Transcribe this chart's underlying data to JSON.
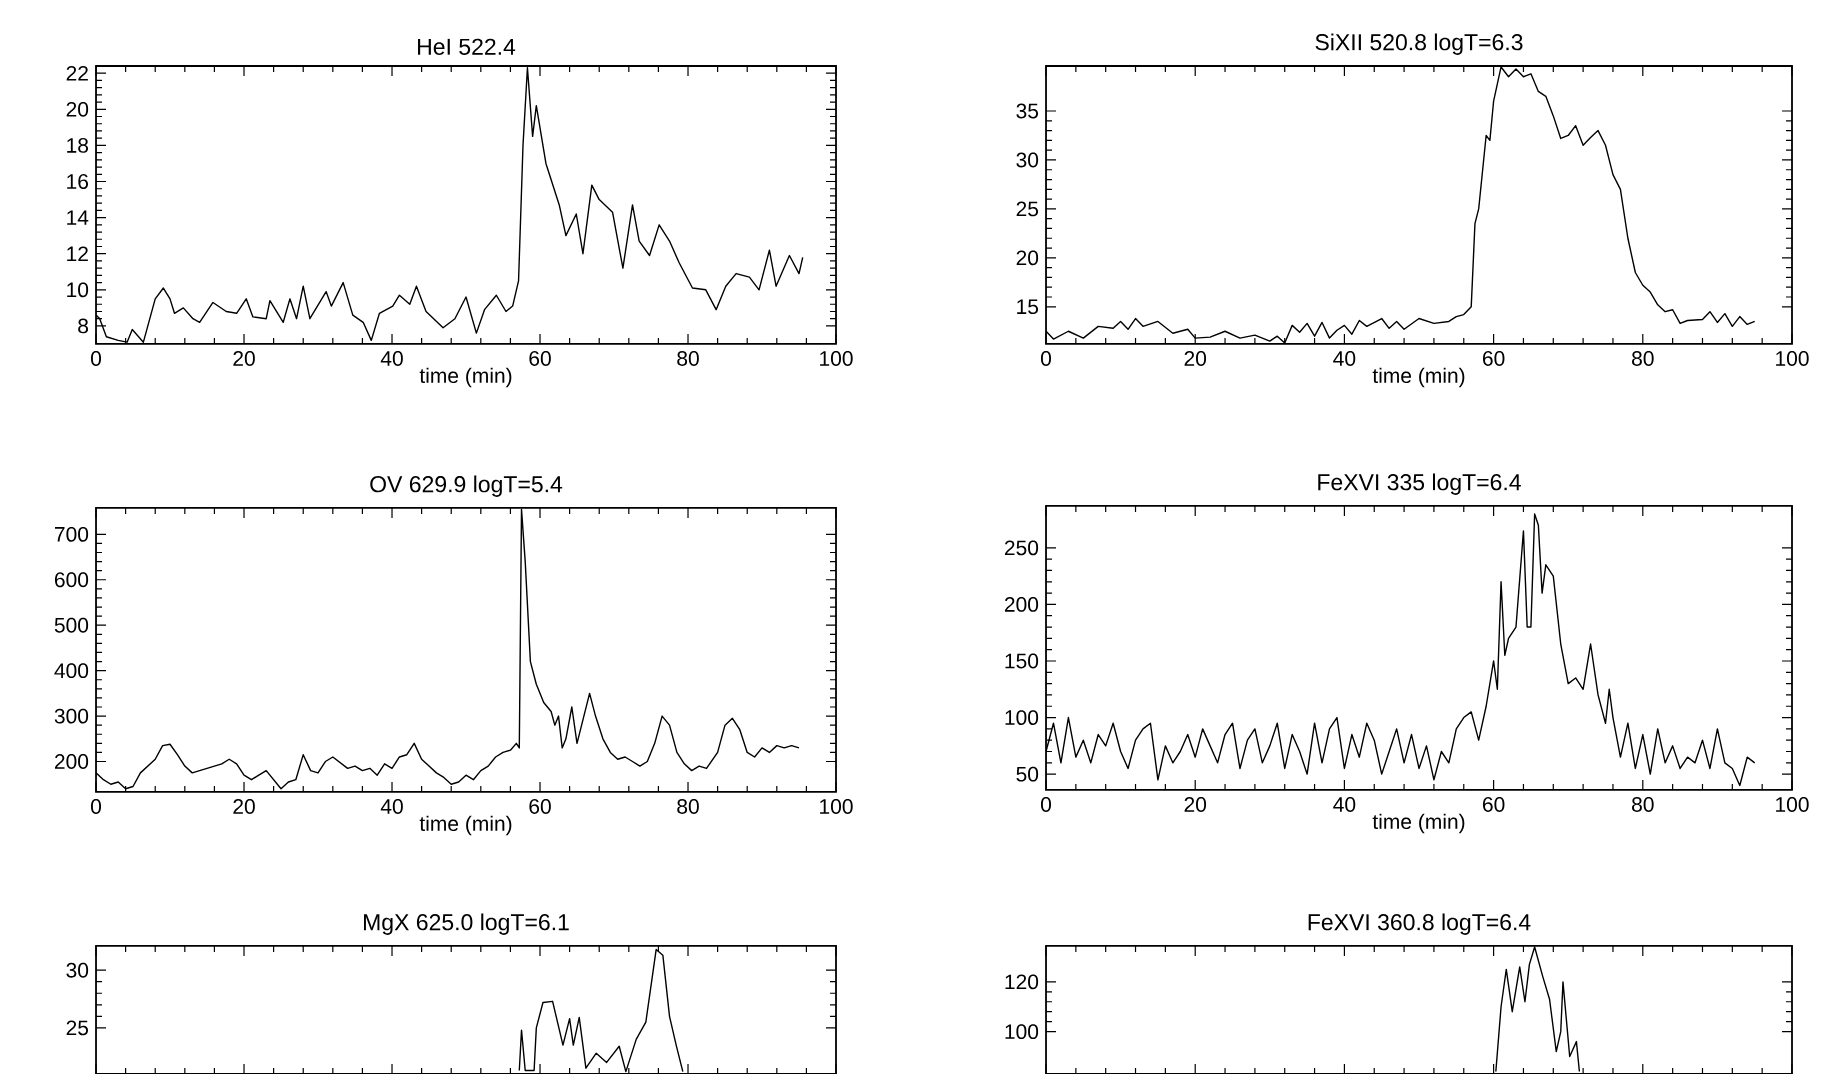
{
  "chart_data": [
    {
      "type": "line",
      "title": "HeI 522.4",
      "xlabel": "time (min)",
      "color": "#000000",
      "xlim": [
        0,
        100
      ],
      "ylim": [
        7,
        22.4
      ],
      "xticks": [
        0,
        20,
        40,
        60,
        80,
        100
      ],
      "yticks": [
        8,
        10,
        12,
        14,
        16,
        18,
        20,
        22
      ],
      "x": [
        0,
        0.5,
        1.4,
        3,
        4.2,
        4.9,
        6.4,
        8,
        9.1,
        10,
        10.6,
        11.8,
        13.1,
        14,
        15.8,
        17.6,
        19,
        20.3,
        21.2,
        23,
        23.5,
        25.3,
        26.2,
        27.1,
        28,
        28.9,
        31.1,
        31.8,
        33.4,
        34.7,
        36.1,
        37.2,
        38.3,
        40.1,
        41,
        42.4,
        43.3,
        44.6,
        46.9,
        48.5,
        50,
        51.4,
        52.5,
        54.1,
        55.4,
        56.3,
        57.1,
        57.7,
        58.3,
        59,
        59.5,
        60.8,
        62.6,
        63.5,
        64.9,
        65.8,
        67,
        68,
        69.8,
        71.2,
        72.5,
        73.4,
        74.8,
        76.1,
        77.5,
        78.8,
        80.6,
        82.4,
        83.8,
        85.1,
        86.5,
        88.3,
        89.6,
        91,
        91.9,
        93.7,
        95,
        95.5
      ],
      "values": [
        8.6,
        8.4,
        7.4,
        7.2,
        7.1,
        7.8,
        7.1,
        9.5,
        10.1,
        9.5,
        8.7,
        9.0,
        8.4,
        8.2,
        9.3,
        8.8,
        8.7,
        9.5,
        8.5,
        8.4,
        9.4,
        8.2,
        9.5,
        8.4,
        10.2,
        8.4,
        9.9,
        9.1,
        10.4,
        8.6,
        8.2,
        7.2,
        8.7,
        9.1,
        9.7,
        9.2,
        10.2,
        8.8,
        7.9,
        8.4,
        9.6,
        7.6,
        8.9,
        9.7,
        8.8,
        9.1,
        10.5,
        18,
        22.3,
        18.5,
        20.2,
        17,
        14.7,
        13,
        14.2,
        12,
        15.8,
        15,
        14.3,
        11.2,
        14.7,
        12.7,
        11.9,
        13.6,
        12.7,
        11.5,
        10.1,
        10.0,
        8.9,
        10.2,
        10.9,
        10.7,
        10.0,
        12.2,
        10.2,
        11.9,
        10.9,
        11.8
      ]
    },
    {
      "type": "line",
      "title": "SiXII 520.8 logT=6.3",
      "xlabel": "time (min)",
      "color": "#000000",
      "xlim": [
        0,
        100
      ],
      "ylim": [
        11.2,
        39.6
      ],
      "xticks": [
        0,
        20,
        40,
        60,
        80,
        100
      ],
      "yticks": [
        15,
        20,
        25,
        30,
        35
      ],
      "x": [
        0,
        1,
        3,
        5,
        7,
        9,
        10,
        11,
        12,
        13,
        15,
        17,
        19,
        20,
        22,
        24,
        26,
        28,
        30,
        31,
        32,
        33,
        34,
        35,
        36,
        37,
        38,
        39,
        40,
        41,
        42,
        43,
        45,
        46,
        47,
        48,
        50,
        52,
        54,
        55,
        56,
        57,
        57.5,
        58,
        59,
        59.5,
        60,
        61,
        62,
        63,
        64,
        65,
        66,
        67,
        68,
        69,
        70,
        71,
        72,
        73,
        74,
        75,
        76,
        77,
        78,
        79,
        80,
        81,
        82,
        83,
        84,
        85,
        86,
        88,
        89,
        90,
        91,
        92,
        93,
        94,
        95
      ],
      "values": [
        12.5,
        11.7,
        12.5,
        11.8,
        13,
        12.8,
        13.5,
        12.7,
        13.8,
        13.0,
        13.5,
        12.3,
        12.7,
        11.8,
        11.9,
        12.5,
        11.8,
        12.1,
        11.5,
        12,
        11.3,
        13.1,
        12.4,
        13.3,
        12.0,
        13.4,
        11.8,
        12.6,
        13.1,
        12.2,
        13.6,
        13.0,
        13.8,
        12.8,
        13.5,
        12.7,
        13.8,
        13.3,
        13.5,
        14.0,
        14.2,
        15.0,
        23.5,
        25,
        32.5,
        32,
        36,
        39.5,
        38.5,
        39.3,
        38.5,
        38.8,
        37,
        36.5,
        34.5,
        32.2,
        32.5,
        33.5,
        31.5,
        32.3,
        33.0,
        31.5,
        28.5,
        27,
        22,
        18.5,
        17.2,
        16.5,
        15.2,
        14.5,
        14.7,
        13.3,
        13.6,
        13.7,
        14.5,
        13.4,
        14.3,
        13.0,
        14.0,
        13.2,
        13.5
      ]
    },
    {
      "type": "line",
      "title": "OV 629.9 logT=5.4",
      "xlabel": "time (min)",
      "color": "#000000",
      "xlim": [
        0,
        100
      ],
      "ylim": [
        133,
        758
      ],
      "xticks": [
        0,
        20,
        40,
        60,
        80,
        100
      ],
      "yticks": [
        200,
        300,
        400,
        500,
        600,
        700
      ],
      "x": [
        0,
        1,
        2,
        3,
        4,
        5,
        6,
        8,
        9,
        10,
        11,
        12,
        13,
        15,
        17,
        18,
        19,
        20,
        21,
        22,
        23,
        25,
        26,
        27,
        28,
        29,
        30,
        31,
        32,
        34,
        35,
        36,
        37,
        38,
        39,
        40,
        41,
        42,
        43,
        44,
        45,
        46,
        47,
        48,
        49,
        50,
        51,
        52,
        53,
        54,
        55,
        56,
        56.8,
        57.2,
        57.5,
        58,
        58.7,
        59.5,
        60.5,
        61.5,
        62,
        62.5,
        63,
        63.5,
        64.3,
        65,
        66.7,
        67.5,
        68.5,
        69.5,
        70.5,
        71.5,
        72.5,
        73.5,
        74.5,
        75.5,
        76.5,
        77.5,
        78.5,
        79.5,
        80.5,
        81.5,
        82.5,
        84,
        85,
        86,
        87,
        88,
        89,
        90,
        91,
        92,
        93,
        94,
        95
      ],
      "values": [
        175,
        160,
        150,
        155,
        140,
        145,
        175,
        205,
        235,
        238,
        215,
        190,
        175,
        185,
        195,
        205,
        195,
        170,
        160,
        170,
        180,
        140,
        155,
        160,
        215,
        180,
        175,
        200,
        210,
        185,
        190,
        180,
        185,
        170,
        195,
        185,
        210,
        215,
        240,
        205,
        190,
        175,
        165,
        150,
        155,
        170,
        160,
        180,
        190,
        210,
        220,
        225,
        240,
        230,
        755,
        640,
        420,
        370,
        330,
        310,
        280,
        300,
        230,
        250,
        320,
        240,
        350,
        300,
        250,
        220,
        205,
        210,
        200,
        190,
        200,
        240,
        300,
        280,
        220,
        195,
        180,
        190,
        185,
        220,
        280,
        295,
        270,
        220,
        210,
        230,
        220,
        235,
        230,
        235,
        230
      ]
    },
    {
      "type": "line",
      "title": "FeXVI 335 logT=6.4",
      "xlabel": "time (min)",
      "color": "#000000",
      "xlim": [
        0,
        100
      ],
      "ylim": [
        36,
        287
      ],
      "xticks": [
        0,
        20,
        40,
        60,
        80,
        100
      ],
      "yticks": [
        50,
        100,
        150,
        200,
        250
      ],
      "x": [
        0,
        1,
        2,
        3,
        4,
        5,
        6,
        7,
        8,
        9,
        10,
        11,
        12,
        13,
        14,
        15,
        16,
        17,
        18,
        19,
        20,
        21,
        22,
        23,
        24,
        25,
        26,
        27,
        28,
        29,
        30,
        31,
        32,
        33,
        34,
        35,
        36,
        37,
        38,
        39,
        40,
        41,
        42,
        43,
        44,
        45,
        46,
        47,
        48,
        49,
        50,
        51,
        52,
        53,
        54,
        55,
        56,
        57,
        58,
        59,
        60,
        60.5,
        61,
        61.5,
        62,
        63,
        64,
        64.5,
        65,
        65.5,
        66,
        66.5,
        67,
        68,
        69,
        70,
        71,
        72,
        73,
        74,
        75,
        75.5,
        76,
        77,
        78,
        79,
        80,
        81,
        82,
        83,
        84,
        85,
        86,
        87,
        88,
        89,
        90,
        91,
        92,
        93,
        94,
        95
      ],
      "values": [
        70,
        95,
        60,
        100,
        65,
        80,
        60,
        85,
        75,
        95,
        70,
        55,
        80,
        90,
        95,
        45,
        75,
        60,
        70,
        85,
        65,
        90,
        75,
        60,
        85,
        95,
        55,
        80,
        90,
        60,
        75,
        95,
        55,
        85,
        70,
        50,
        95,
        60,
        90,
        100,
        55,
        85,
        65,
        95,
        80,
        50,
        70,
        90,
        60,
        85,
        55,
        75,
        45,
        70,
        60,
        90,
        100,
        105,
        80,
        110,
        150,
        125,
        220,
        155,
        170,
        180,
        265,
        180,
        180,
        280,
        270,
        210,
        235,
        225,
        165,
        130,
        135,
        125,
        165,
        120,
        95,
        125,
        100,
        65,
        95,
        55,
        85,
        50,
        90,
        60,
        75,
        55,
        65,
        60,
        80,
        55,
        90,
        60,
        55,
        40,
        65,
        60
      ]
    },
    {
      "type": "line",
      "title": "MgX 625.0 logT=6.1",
      "color": "#000000",
      "xlim": [
        0,
        100
      ],
      "ylim": [
        21,
        32.1
      ],
      "xticks": [
        0,
        20,
        40,
        60,
        80,
        100
      ],
      "yticks": [
        25,
        30
      ],
      "tick_labels": "y",
      "x": [
        57.2,
        57.5,
        58.0,
        59.2,
        59.5,
        60.4,
        61.7,
        63.1,
        64,
        64.5,
        65.3,
        66.2,
        67.6,
        69,
        70.7,
        71.6,
        73,
        74.3,
        75.7,
        76.6,
        77.5,
        78.4,
        79.3
      ],
      "values": [
        21.3,
        24.8,
        21.3,
        21.3,
        25,
        27.2,
        27.3,
        23.5,
        25.8,
        23.5,
        25.9,
        21.5,
        22.8,
        22,
        23.4,
        21.2,
        24,
        25.5,
        31.8,
        31.3,
        26,
        23.5,
        21.2
      ]
    },
    {
      "type": "line",
      "title": "FeXVI 360.8 logT=6.4",
      "color": "#000000",
      "xlim": [
        0,
        100
      ],
      "ylim": [
        83,
        134.4
      ],
      "xticks": [
        0,
        20,
        40,
        60,
        80,
        100
      ],
      "yticks": [
        100,
        120
      ],
      "tick_labels": "y",
      "x": [
        60.3,
        61,
        61.7,
        62.5,
        63.5,
        64.2,
        64.8,
        65.5,
        66.6,
        67.5,
        68.4,
        69,
        69.3,
        70.2,
        71.1,
        71.5
      ],
      "values": [
        84,
        110,
        125,
        108,
        126,
        112,
        127,
        134,
        122,
        113,
        92,
        100,
        120,
        90,
        96,
        84
      ]
    }
  ]
}
